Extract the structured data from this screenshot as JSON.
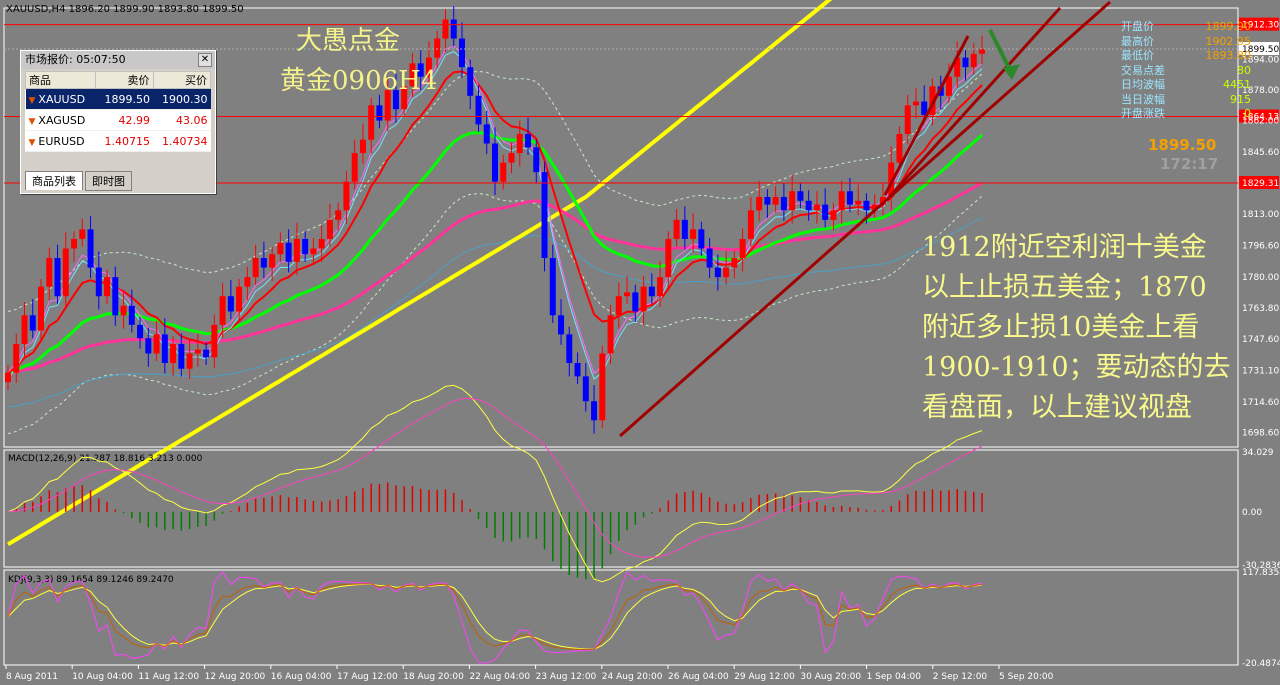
{
  "chart_title": "XAUUSD,H4  1896.20 1899.90 1893.80 1899.50",
  "watermark_title": "大愚点金",
  "watermark_subtitle": "黄金0906H4",
  "annotation_lines": [
    "1912附近空利润十美金",
    "以上止损五美金；1870",
    "附近多止损10美金上看",
    "1900-1910；要动态的去",
    "看盘面，以上建议视盘"
  ],
  "market_watch": {
    "title": "市场报价: 05:07:50",
    "headers": [
      "商品",
      "卖价",
      "买价"
    ],
    "rows": [
      {
        "symbol": "XAUUSD",
        "bid": "1899.50",
        "ask": "1900.30",
        "selected": true
      },
      {
        "symbol": "XAGUSD",
        "bid": "42.99",
        "ask": "43.06",
        "selected": false
      },
      {
        "symbol": "EURUSD",
        "bid": "1.40715",
        "ask": "1.40734",
        "selected": false
      }
    ],
    "tabs": [
      "商品列表",
      "即时图"
    ]
  },
  "right_panel": {
    "items": [
      {
        "label": "开盘价",
        "value": "1899.90"
      },
      {
        "label": "最高价",
        "value": "1902.95"
      },
      {
        "label": "最低价",
        "value": "1893.80"
      },
      {
        "label": "交易点差",
        "value": "80"
      },
      {
        "label": "日均波幅",
        "value": "4451"
      },
      {
        "label": "当日波幅",
        "value": "915"
      },
      {
        "label": "开盘涨跌",
        "value": "0"
      }
    ],
    "big_price": "1899.50",
    "countdown": "172:17"
  },
  "colors": {
    "background": "#808080",
    "bull": "#ff0000",
    "bear": "#0000ff",
    "ma_fast": "#ff0000",
    "ma_mid": "#00ff00",
    "ma_slow": "#ff3399",
    "ma_long": "#ffff00",
    "level_line": "#ff0000",
    "trend_line": "#a00000",
    "annotation_text": "#ffff99"
  },
  "chart_data": {
    "type": "candlestick",
    "symbol": "XAUUSD",
    "timeframe": "H4",
    "ylim": [
      1691,
      1921
    ],
    "y_ticks": [
      "1912.30",
      "1894.00",
      "1878.00",
      "1862.00",
      "1845.60",
      "1829.31",
      "1813.00",
      "1796.60",
      "1780.00",
      "1763.80",
      "1747.60",
      "1731.10",
      "1714.60",
      "1698.60"
    ],
    "x_ticks": [
      "8 Aug 2011",
      "10 Aug 04:00",
      "11 Aug 12:00",
      "12 Aug 20:00",
      "16 Aug 04:00",
      "17 Aug 12:00",
      "18 Aug 20:00",
      "22 Aug 04:00",
      "23 Aug 12:00",
      "24 Aug 20:00",
      "26 Aug 04:00",
      "29 Aug 12:00",
      "30 Aug 20:00",
      "1 Sep 04:00",
      "2 Sep 12:00",
      "5 Sep 20:00"
    ],
    "levels": [
      {
        "value": 1912.3,
        "label": "1912.30"
      },
      {
        "value": 1864.13,
        "label": "1864.13"
      },
      {
        "value": 1829.31,
        "label": "1829.31"
      }
    ],
    "current_price": "1899.50",
    "closes": [
      1730,
      1745,
      1760,
      1752,
      1775,
      1790,
      1770,
      1795,
      1800,
      1805,
      1785,
      1770,
      1780,
      1760,
      1765,
      1755,
      1748,
      1740,
      1750,
      1735,
      1745,
      1732,
      1740,
      1742,
      1738,
      1755,
      1770,
      1762,
      1775,
      1780,
      1790,
      1785,
      1792,
      1798,
      1788,
      1800,
      1792,
      1795,
      1800,
      1810,
      1815,
      1830,
      1845,
      1852,
      1870,
      1862,
      1878,
      1868,
      1880,
      1892,
      1885,
      1895,
      1905,
      1915,
      1905,
      1890,
      1875,
      1860,
      1850,
      1830,
      1840,
      1845,
      1855,
      1848,
      1835,
      1790,
      1760,
      1750,
      1735,
      1728,
      1715,
      1705,
      1740,
      1760,
      1770,
      1772,
      1762,
      1775,
      1770,
      1780,
      1800,
      1810,
      1800,
      1805,
      1795,
      1785,
      1780,
      1785,
      1790,
      1800,
      1815,
      1822,
      1818,
      1822,
      1815,
      1825,
      1820,
      1815,
      1818,
      1810,
      1815,
      1825,
      1818,
      1820,
      1815,
      1818,
      1822,
      1840,
      1855,
      1870,
      1872,
      1865,
      1880,
      1875,
      1885,
      1895,
      1890,
      1897,
      1899.5
    ],
    "macd": {
      "label": "MACD(12,26,9) 21.287 18.816 3.213 0.000",
      "ylim": [
        -30.2836,
        34.029
      ],
      "ticks": [
        "34.029",
        "0.00",
        "-30.2836"
      ]
    },
    "kdj": {
      "label": "KDJ(9,3,3) 89.1654 89.1246 89.2470",
      "ylim": [
        -20.4874,
        117.8354
      ],
      "ticks": [
        "117.8354",
        "-20.4874"
      ]
    }
  }
}
